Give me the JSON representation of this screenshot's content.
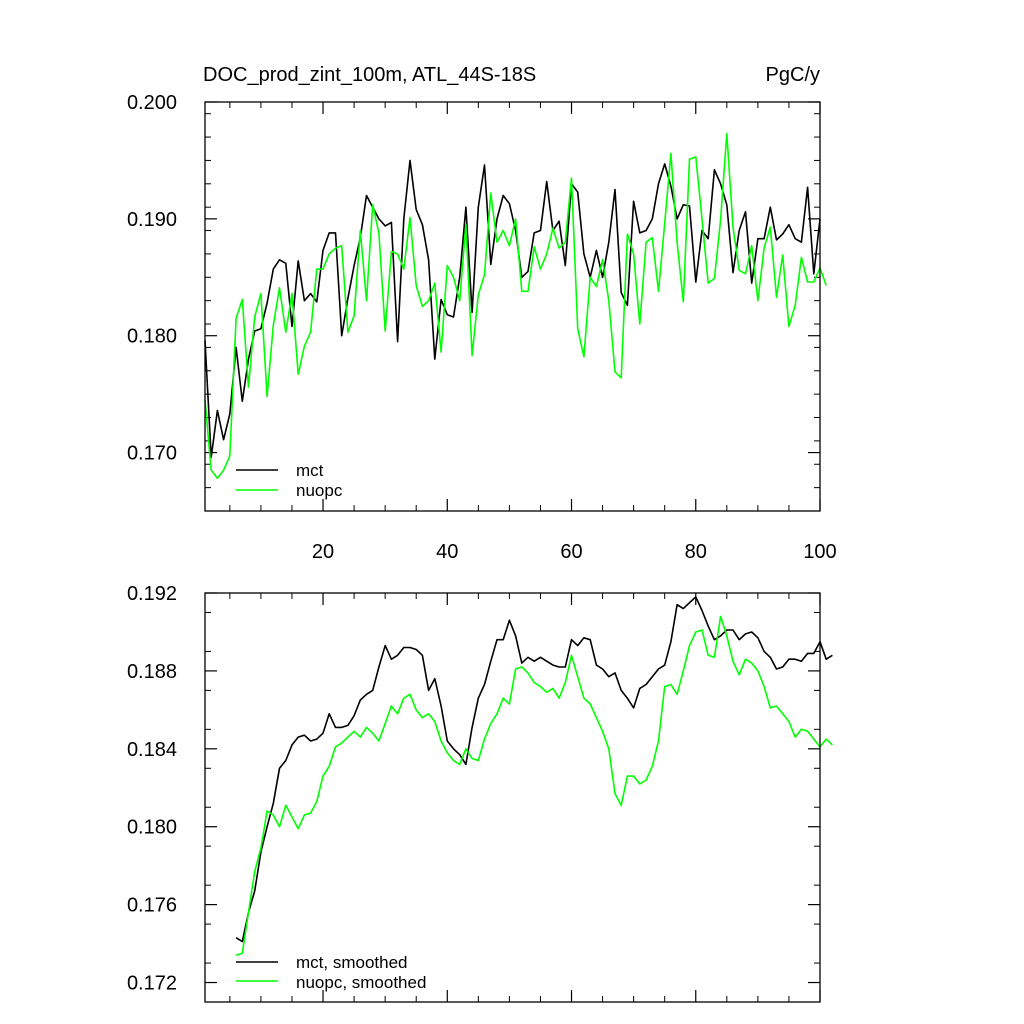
{
  "chart_data": [
    {
      "type": "line",
      "title": "DOC_prod_zint_100m, ATL_44S-18S",
      "units": "PgC/y",
      "xlabel": "",
      "ylabel": "",
      "xlim": [
        1,
        100
      ],
      "ylim": [
        0.165,
        0.2
      ],
      "xticks": [
        "20",
        "40",
        "60",
        "80",
        "100"
      ],
      "xtick_values": [
        20,
        40,
        60,
        80,
        100
      ],
      "yticks": [
        "0.170",
        "0.180",
        "0.190",
        "0.200"
      ],
      "ytick_values": [
        0.17,
        0.18,
        0.19,
        0.2
      ],
      "legend_position": "bottom-left",
      "series": [
        {
          "name": "mct",
          "color": "#000000",
          "x_start": 1,
          "values": [
            0.1796,
            0.1696,
            0.1736,
            0.1711,
            0.1733,
            0.179,
            0.1744,
            0.178,
            0.1804,
            0.1806,
            0.1828,
            0.1857,
            0.1865,
            0.1862,
            0.1808,
            0.1864,
            0.183,
            0.1836,
            0.1829,
            0.1873,
            0.1888,
            0.1888,
            0.18,
            0.1832,
            0.186,
            0.1884,
            0.192,
            0.191,
            0.19,
            0.1894,
            0.1897,
            0.1795,
            0.19,
            0.195,
            0.1908,
            0.1895,
            0.1865,
            0.178,
            0.1831,
            0.1818,
            0.1816,
            0.185,
            0.191,
            0.182,
            0.191,
            0.1946,
            0.1861,
            0.19,
            0.192,
            0.1913,
            0.189,
            0.185,
            0.1855,
            0.1888,
            0.189,
            0.1932,
            0.189,
            0.1898,
            0.186,
            0.193,
            0.1923,
            0.187,
            0.185,
            0.1873,
            0.185,
            0.188,
            0.1925,
            0.1837,
            0.1826,
            0.1915,
            0.1888,
            0.189,
            0.19,
            0.193,
            0.1947,
            0.1928,
            0.19,
            0.1912,
            0.1911,
            0.1846,
            0.189,
            0.1883,
            0.1942,
            0.193,
            0.1912,
            0.1854,
            0.189,
            0.1906,
            0.1845,
            0.1883,
            0.1883,
            0.191,
            0.1882,
            0.1887,
            0.1895,
            0.1883,
            0.188,
            0.1927,
            0.1853,
            0.19
          ]
        },
        {
          "name": "nuopc",
          "color": "#00ff00",
          "x_start": 1,
          "values": [
            0.1745,
            0.1685,
            0.1678,
            0.1685,
            0.1697,
            0.1815,
            0.1831,
            0.1756,
            0.1816,
            0.1836,
            0.1748,
            0.1809,
            0.1841,
            0.1803,
            0.1836,
            0.1767,
            0.1791,
            0.1803,
            0.1857,
            0.1857,
            0.187,
            0.1875,
            0.1877,
            0.1803,
            0.1817,
            0.189,
            0.183,
            0.1912,
            0.1888,
            0.1804,
            0.1872,
            0.187,
            0.1857,
            0.1901,
            0.1843,
            0.1825,
            0.183,
            0.1845,
            0.1786,
            0.186,
            0.185,
            0.183,
            0.1895,
            0.1783,
            0.1835,
            0.1852,
            0.1922,
            0.188,
            0.189,
            0.1877,
            0.19,
            0.1838,
            0.1838,
            0.1876,
            0.1857,
            0.187,
            0.1892,
            0.1875,
            0.188,
            0.1935,
            0.1806,
            0.1782,
            0.185,
            0.1842,
            0.1865,
            0.183,
            0.1769,
            0.1764,
            0.1887,
            0.187,
            0.181,
            0.188,
            0.1884,
            0.1838,
            0.1896,
            0.1956,
            0.188,
            0.1829,
            0.1951,
            0.1953,
            0.19,
            0.1845,
            0.1849,
            0.1899,
            0.1973,
            0.1893,
            0.1856,
            0.1853,
            0.1877,
            0.183,
            0.1875,
            0.1893,
            0.1833,
            0.1869,
            0.1808,
            0.1826,
            0.1867,
            0.1846,
            0.1846,
            0.1858,
            0.1843
          ]
        }
      ]
    },
    {
      "type": "line",
      "title": "",
      "xlabel": "",
      "ylabel": "",
      "xlim": [
        1,
        100
      ],
      "ylim": [
        0.171,
        0.192
      ],
      "xticks": [],
      "xtick_values": [
        20,
        40,
        60,
        80,
        100
      ],
      "yticks": [
        "0.172",
        "0.176",
        "0.180",
        "0.184",
        "0.188",
        "0.192"
      ],
      "ytick_values": [
        0.172,
        0.176,
        0.18,
        0.184,
        0.188,
        0.192
      ],
      "legend_position": "bottom-left",
      "series": [
        {
          "name": "mct, smoothed",
          "color": "#000000",
          "x_start": 6,
          "values": [
            0.1743,
            0.1741,
            0.1756,
            0.1767,
            0.1787,
            0.18,
            0.1812,
            0.183,
            0.1834,
            0.1842,
            0.1846,
            0.1847,
            0.1844,
            0.1845,
            0.1848,
            0.1858,
            0.1851,
            0.1851,
            0.1852,
            0.1857,
            0.1865,
            0.1868,
            0.187,
            0.1882,
            0.1893,
            0.1886,
            0.1888,
            0.1892,
            0.1892,
            0.1891,
            0.1888,
            0.187,
            0.1876,
            0.1862,
            0.1844,
            0.184,
            0.1837,
            0.1832,
            0.1851,
            0.1866,
            0.1873,
            0.1885,
            0.1896,
            0.1896,
            0.1906,
            0.1898,
            0.1884,
            0.1887,
            0.1885,
            0.1887,
            0.1885,
            0.1883,
            0.1882,
            0.1882,
            0.1896,
            0.1893,
            0.1897,
            0.1896,
            0.1883,
            0.1881,
            0.1877,
            0.1879,
            0.187,
            0.1866,
            0.1861,
            0.1871,
            0.1873,
            0.1877,
            0.1881,
            0.1883,
            0.1895,
            0.1914,
            0.1912,
            0.1915,
            0.1918,
            0.1911,
            0.1903,
            0.1896,
            0.1898,
            0.1901,
            0.1901,
            0.1896,
            0.1899,
            0.19,
            0.1897,
            0.189,
            0.1887,
            0.1881,
            0.1882,
            0.1886,
            0.1886,
            0.1885,
            0.1889,
            0.1889,
            0.1895,
            0.1886,
            0.1888
          ]
        },
        {
          "name": "nuopc, smoothed",
          "color": "#00ff00",
          "x_start": 6,
          "values": [
            0.1734,
            0.1735,
            0.1756,
            0.1777,
            0.1789,
            0.1808,
            0.1806,
            0.18,
            0.1811,
            0.1805,
            0.1799,
            0.1806,
            0.1807,
            0.1813,
            0.1826,
            0.1831,
            0.1841,
            0.1843,
            0.1846,
            0.1849,
            0.1846,
            0.1851,
            0.1848,
            0.1844,
            0.1853,
            0.1862,
            0.1858,
            0.1866,
            0.1868,
            0.186,
            0.1856,
            0.1858,
            0.1854,
            0.1844,
            0.1838,
            0.1834,
            0.1832,
            0.184,
            0.1835,
            0.1834,
            0.1845,
            0.1853,
            0.1858,
            0.1866,
            0.1863,
            0.1881,
            0.1882,
            0.1879,
            0.1874,
            0.1872,
            0.1869,
            0.1871,
            0.1866,
            0.1874,
            0.1888,
            0.1877,
            0.1866,
            0.1863,
            0.1856,
            0.1849,
            0.184,
            0.1817,
            0.1811,
            0.1826,
            0.1826,
            0.1822,
            0.1824,
            0.1831,
            0.1844,
            0.1872,
            0.1873,
            0.1868,
            0.188,
            0.1893,
            0.19,
            0.1901,
            0.1888,
            0.1887,
            0.1908,
            0.1898,
            0.1885,
            0.1878,
            0.1886,
            0.1884,
            0.188,
            0.1872,
            0.1861,
            0.1862,
            0.1858,
            0.1854,
            0.1846,
            0.185,
            0.1849,
            0.1845,
            0.1841,
            0.1845,
            0.1842
          ]
        }
      ]
    }
  ]
}
